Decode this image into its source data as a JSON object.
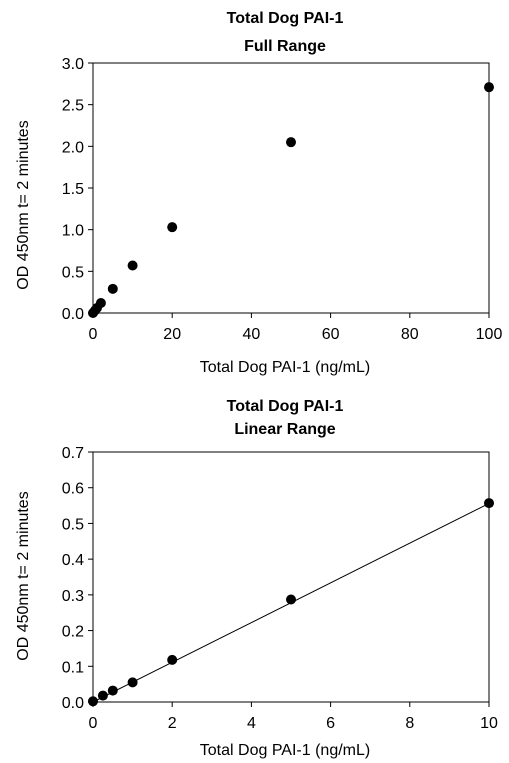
{
  "chart_data": [
    {
      "type": "scatter",
      "title": [
        "Total Dog PAI-1",
        "Full Range"
      ],
      "xlabel": "Total  Dog PAI-1 (ng/mL)",
      "ylabel": "OD 450nm  t= 2 minutes",
      "xlim": [
        0,
        100
      ],
      "ylim": [
        0,
        3.0
      ],
      "xticks": [
        "0",
        "20",
        "40",
        "60",
        "80",
        "100"
      ],
      "yticks": [
        "0.0",
        "0.5",
        "1.0",
        "1.5",
        "2.0",
        "2.5",
        "3.0"
      ],
      "grid": false,
      "legend": "none",
      "x": [
        0,
        0.5,
        1,
        2,
        5,
        10,
        20,
        50,
        100
      ],
      "y": [
        0.0,
        0.03,
        0.06,
        0.12,
        0.29,
        0.57,
        1.03,
        2.05,
        2.71
      ],
      "trendline": false
    },
    {
      "type": "scatter",
      "title": [
        "Total Dog PAI-1",
        "Linear Range"
      ],
      "xlabel": "Total  Dog PAI-1  (ng/mL)",
      "ylabel": "OD 450nm  t= 2 minutes",
      "xlim": [
        0,
        10
      ],
      "ylim": [
        0,
        0.7
      ],
      "xticks": [
        "0",
        "2",
        "4",
        "6",
        "8",
        "10"
      ],
      "yticks": [
        "0.0",
        "0.1",
        "0.2",
        "0.3",
        "0.4",
        "0.5",
        "0.6",
        "0.7"
      ],
      "grid": false,
      "legend": "none",
      "x": [
        0,
        0.25,
        0.5,
        1,
        2,
        5,
        10
      ],
      "y": [
        0.002,
        0.018,
        0.032,
        0.055,
        0.118,
        0.287,
        0.557
      ],
      "trendline": true,
      "trendline_points": {
        "x": [
          0,
          10
        ],
        "y": [
          0.0,
          0.556
        ]
      }
    }
  ]
}
